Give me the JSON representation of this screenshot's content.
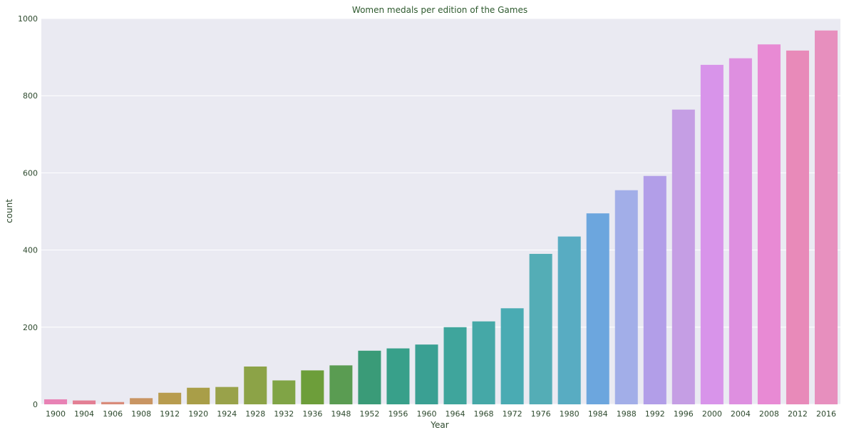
{
  "chart_data": {
    "type": "bar",
    "title": "Women medals per edition of the Games",
    "xlabel": "Year",
    "ylabel": "count",
    "ylim": [
      0,
      1000
    ],
    "yticks": [
      0,
      200,
      400,
      600,
      800,
      1000
    ],
    "grid": true,
    "categories": [
      "1900",
      "1904",
      "1906",
      "1908",
      "1912",
      "1920",
      "1924",
      "1928",
      "1932",
      "1936",
      "1948",
      "1952",
      "1956",
      "1960",
      "1964",
      "1968",
      "1972",
      "1976",
      "1980",
      "1984",
      "1988",
      "1992",
      "1996",
      "2000",
      "2004",
      "2008",
      "2012",
      "2016"
    ],
    "values": [
      13,
      10,
      6,
      16,
      30,
      43,
      45,
      98,
      62,
      88,
      101,
      139,
      145,
      155,
      200,
      215,
      249,
      390,
      435,
      495,
      555,
      592,
      764,
      880,
      897,
      933,
      917,
      969
    ],
    "colors": [
      "#e882b5",
      "#e37f94",
      "#d98b7a",
      "#c99563",
      "#b89c4f",
      "#a99e48",
      "#99a24a",
      "#8ca347",
      "#80a446",
      "#6d9e3a",
      "#5a9c52",
      "#3a9b78",
      "#38a08a",
      "#3aa093",
      "#3fa59c",
      "#45a8a7",
      "#4aabb3",
      "#54adb6",
      "#58acc2",
      "#6ca6de",
      "#a2aee8",
      "#b29ee8",
      "#c59ee4",
      "#d894ea",
      "#de8fe0",
      "#e88ad4",
      "#e88ab9",
      "#e78fbe"
    ]
  }
}
